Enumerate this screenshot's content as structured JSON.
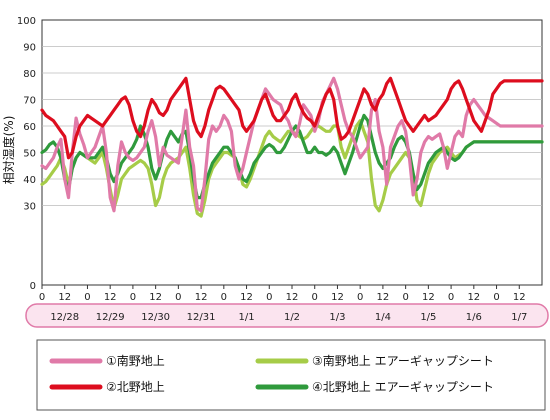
{
  "chart_data": {
    "type": "line",
    "ylabel": "相対湿度(%)",
    "ylim": [
      0,
      100
    ],
    "y_ticks": [
      "0",
      "30",
      "40",
      "50",
      "60",
      "70",
      "80",
      "90",
      "100"
    ],
    "x_range": [
      0,
      264
    ],
    "x_tick_values": [
      0,
      12,
      24,
      36,
      48,
      60,
      72,
      84,
      96,
      108,
      120,
      132,
      144,
      156,
      168,
      180,
      192,
      204,
      216,
      228,
      240,
      252
    ],
    "x_tick_labels": [
      "0",
      "12",
      "0",
      "12",
      "0",
      "12",
      "0",
      "12",
      "0",
      "12",
      "0",
      "12",
      "0",
      "12",
      "0",
      "12",
      "0",
      "12",
      "0",
      "12",
      "0",
      "12"
    ],
    "dates": [
      "12/28",
      "12/29",
      "12/30",
      "12/31",
      "1/1",
      "1/2",
      "1/3",
      "1/4",
      "1/5",
      "1/6",
      "1/7"
    ],
    "date_positions": [
      12,
      36,
      60,
      84,
      108,
      132,
      156,
      180,
      204,
      228,
      252
    ],
    "grid": true,
    "colors": {
      "grid": "#bbbbbb",
      "date_band_fill": "#fbe4ef",
      "date_band_stroke": "#e07aa8"
    },
    "legend_placement": "bottom",
    "x": [
      0,
      2,
      4,
      6,
      8,
      10,
      12,
      14,
      16,
      18,
      20,
      22,
      24,
      26,
      28,
      30,
      32,
      34,
      36,
      38,
      40,
      42,
      44,
      46,
      48,
      50,
      52,
      54,
      56,
      58,
      60,
      62,
      64,
      66,
      68,
      70,
      72,
      74,
      76,
      78,
      80,
      82,
      84,
      86,
      88,
      90,
      92,
      94,
      96,
      98,
      100,
      102,
      104,
      106,
      108,
      110,
      112,
      114,
      116,
      118,
      120,
      122,
      124,
      126,
      128,
      130,
      132,
      134,
      136,
      138,
      140,
      142,
      144,
      146,
      148,
      150,
      152,
      154,
      156,
      158,
      160,
      162,
      164,
      166,
      168,
      170,
      172,
      174,
      176,
      178,
      180,
      182,
      184,
      186,
      188,
      190,
      192,
      194,
      196,
      198,
      200,
      202,
      204,
      206,
      208,
      210,
      212,
      214,
      216,
      218,
      220,
      222,
      224,
      226,
      228,
      230,
      232,
      234,
      236,
      238,
      240,
      242,
      244,
      246,
      248,
      250,
      252,
      254,
      256,
      258,
      260,
      262,
      264
    ],
    "series": [
      {
        "name": "①南野地上",
        "color": "#e07aa8",
        "values": [
          45,
          44,
          46,
          48,
          52,
          55,
          40,
          33,
          50,
          63,
          57,
          53,
          48,
          50,
          52,
          56,
          60,
          50,
          33,
          28,
          45,
          54,
          50,
          48,
          47,
          48,
          50,
          52,
          58,
          62,
          56,
          45,
          52,
          49,
          48,
          47,
          46,
          56,
          66,
          52,
          45,
          29,
          28,
          40,
          55,
          60,
          58,
          60,
          64,
          62,
          58,
          45,
          40,
          44,
          50,
          56,
          62,
          66,
          70,
          74,
          72,
          70,
          69,
          68,
          64,
          62,
          58,
          56,
          61,
          68,
          66,
          64,
          58,
          62,
          69,
          72,
          75,
          78,
          74,
          68,
          62,
          58,
          56,
          52,
          48,
          50,
          52,
          66,
          70,
          58,
          52,
          38,
          52,
          56,
          60,
          62,
          58,
          48,
          34,
          40,
          50,
          54,
          56,
          55,
          56,
          57,
          52,
          44,
          50,
          56,
          58,
          56,
          64,
          68,
          70,
          68,
          66,
          64,
          63,
          62,
          61,
          60,
          60,
          60,
          60,
          60,
          60,
          60,
          60,
          60,
          60,
          60,
          60
        ]
      },
      {
        "name": "②北野地上",
        "color": "#dd0d1e",
        "values": [
          66,
          64,
          63,
          62,
          60,
          58,
          56,
          48,
          50,
          56,
          60,
          62,
          64,
          63,
          62,
          61,
          60,
          62,
          64,
          66,
          68,
          70,
          71,
          68,
          62,
          58,
          56,
          60,
          66,
          70,
          68,
          65,
          64,
          66,
          70,
          72,
          74,
          76,
          78,
          70,
          62,
          58,
          56,
          60,
          66,
          70,
          74,
          75,
          74,
          72,
          70,
          68,
          66,
          60,
          58,
          60,
          62,
          66,
          70,
          72,
          68,
          64,
          62,
          62,
          64,
          66,
          70,
          72,
          68,
          65,
          63,
          62,
          60,
          64,
          68,
          72,
          74,
          70,
          60,
          55,
          56,
          58,
          62,
          66,
          70,
          74,
          72,
          68,
          66,
          70,
          72,
          76,
          78,
          74,
          70,
          66,
          62,
          60,
          58,
          60,
          62,
          64,
          62,
          63,
          64,
          66,
          68,
          70,
          74,
          76,
          77,
          74,
          70,
          66,
          62,
          60,
          58,
          62,
          66,
          72,
          74,
          76,
          77,
          77,
          77,
          77,
          77,
          77,
          77,
          77,
          77,
          77,
          77
        ]
      },
      {
        "name": "③南野地上 エアーギャップシート",
        "color": "#a6cc48",
        "values": [
          38,
          39,
          41,
          43,
          45,
          48,
          44,
          38,
          44,
          48,
          50,
          49,
          48,
          47,
          46,
          48,
          50,
          44,
          36,
          29,
          34,
          40,
          42,
          44,
          45,
          46,
          47,
          46,
          44,
          38,
          30,
          33,
          40,
          44,
          46,
          47,
          48,
          50,
          52,
          44,
          34,
          27,
          26,
          32,
          40,
          44,
          46,
          48,
          50,
          50,
          49,
          48,
          44,
          38,
          37,
          40,
          44,
          48,
          52,
          56,
          58,
          56,
          55,
          54,
          56,
          58,
          58,
          57,
          56,
          55,
          56,
          58,
          60,
          60,
          59,
          58,
          58,
          60,
          60,
          52,
          48,
          52,
          56,
          60,
          62,
          58,
          54,
          40,
          30,
          28,
          32,
          38,
          42,
          44,
          46,
          48,
          50,
          48,
          42,
          32,
          30,
          36,
          42,
          46,
          48,
          50,
          51,
          52,
          50,
          48,
          49,
          50,
          52,
          53,
          54,
          54,
          54,
          54,
          54,
          54,
          54,
          54,
          54,
          54,
          54,
          54,
          54,
          54,
          54,
          54,
          54,
          54,
          54
        ]
      },
      {
        "name": "④北野地上 エアーギャップシート",
        "color": "#2f9a3c",
        "values": [
          50,
          51,
          53,
          54,
          52,
          48,
          40,
          36,
          44,
          48,
          50,
          49,
          48,
          48,
          48,
          50,
          52,
          48,
          42,
          39,
          42,
          46,
          48,
          50,
          52,
          55,
          60,
          57,
          52,
          44,
          40,
          44,
          50,
          55,
          58,
          56,
          54,
          57,
          58,
          50,
          40,
          33,
          33,
          38,
          42,
          46,
          48,
          50,
          52,
          52,
          50,
          48,
          44,
          40,
          39,
          42,
          46,
          48,
          50,
          52,
          53,
          52,
          50,
          50,
          52,
          55,
          58,
          60,
          58,
          54,
          50,
          50,
          52,
          50,
          50,
          49,
          50,
          52,
          50,
          46,
          42,
          46,
          50,
          55,
          60,
          64,
          62,
          56,
          50,
          46,
          44,
          46,
          48,
          52,
          55,
          56,
          54,
          50,
          42,
          36,
          38,
          42,
          46,
          48,
          50,
          51,
          52,
          50,
          48,
          47,
          48,
          50,
          52,
          53,
          54,
          54,
          54,
          54,
          54,
          54,
          54,
          54,
          54,
          54,
          54,
          54,
          54,
          54,
          54,
          54,
          54,
          54,
          54
        ]
      }
    ]
  }
}
